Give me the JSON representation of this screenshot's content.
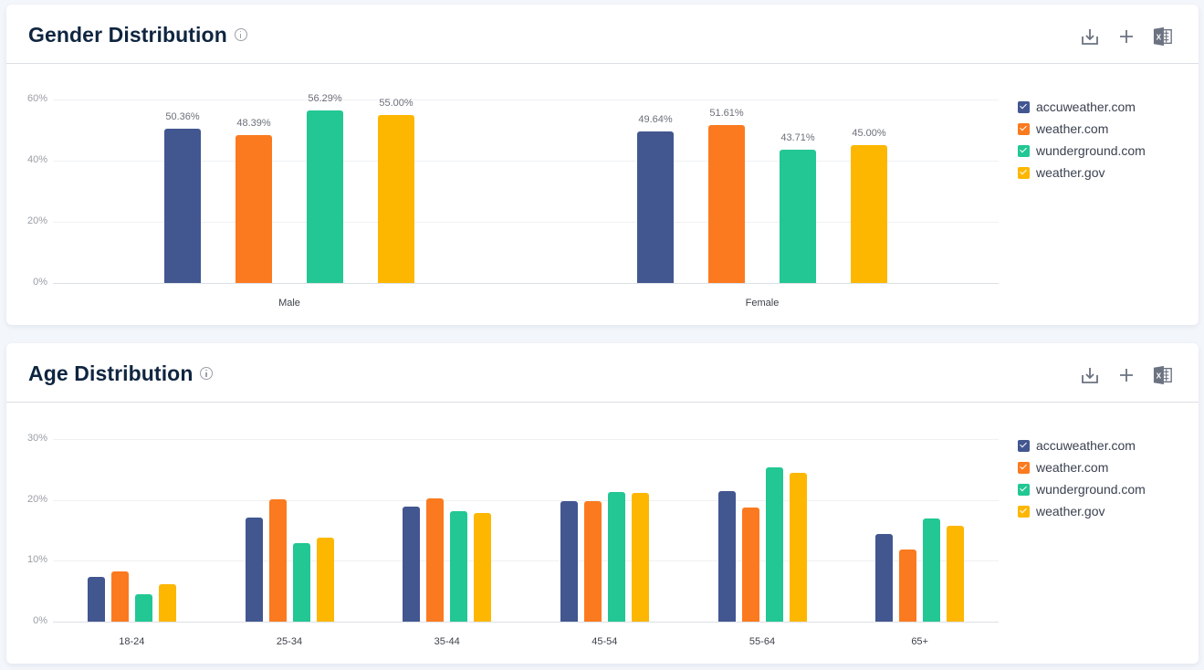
{
  "series_colors": {
    "accuweather.com": "#425690",
    "weather.com": "#fb7a1f",
    "wunderground.com": "#22c793",
    "weather.gov": "#fdb700"
  },
  "legend": [
    {
      "label": "accuweather.com",
      "color": "#425690"
    },
    {
      "label": "weather.com",
      "color": "#fb7a1f"
    },
    {
      "label": "wunderground.com",
      "color": "#22c793"
    },
    {
      "label": "weather.gov",
      "color": "#fdb700"
    }
  ],
  "gender": {
    "title": "Gender Distribution",
    "yticks": [
      "60%",
      "40%",
      "20%",
      "0%"
    ],
    "categories": [
      "Male",
      "Female"
    ],
    "labels": [
      [
        "50.36%",
        "48.39%",
        "56.29%",
        "55.00%"
      ],
      [
        "49.64%",
        "51.61%",
        "43.71%",
        "45.00%"
      ]
    ]
  },
  "age": {
    "title": "Age Distribution",
    "yticks": [
      "30%",
      "20%",
      "10%",
      "0%"
    ],
    "categories": [
      "18-24",
      "25-34",
      "35-44",
      "45-54",
      "55-64",
      "65+"
    ]
  },
  "toolbar": {
    "download": "download-icon",
    "add": "plus-icon",
    "excel": "excel-icon"
  },
  "chart_data": [
    {
      "type": "bar",
      "title": "Gender Distribution",
      "categories": [
        "Male",
        "Female"
      ],
      "series": [
        {
          "name": "accuweather.com",
          "values": [
            50.36,
            49.64
          ]
        },
        {
          "name": "weather.com",
          "values": [
            48.39,
            51.61
          ]
        },
        {
          "name": "wunderground.com",
          "values": [
            56.29,
            43.71
          ]
        },
        {
          "name": "weather.gov",
          "values": [
            55.0,
            45.0
          ]
        }
      ],
      "xlabel": "",
      "ylabel": "",
      "ylim": [
        0,
        60
      ],
      "yticks": [
        "0%",
        "20%",
        "40%",
        "60%"
      ],
      "grid": true,
      "legend_position": "right",
      "data_labels": true
    },
    {
      "type": "bar",
      "title": "Age Distribution",
      "categories": [
        "18-24",
        "25-34",
        "35-44",
        "45-54",
        "55-64",
        "65+"
      ],
      "series": [
        {
          "name": "accuweather.com",
          "values": [
            7.3,
            17.1,
            18.9,
            19.8,
            21.4,
            14.4
          ]
        },
        {
          "name": "weather.com",
          "values": [
            8.2,
            20.1,
            20.2,
            19.8,
            18.7,
            11.8
          ]
        },
        {
          "name": "wunderground.com",
          "values": [
            4.5,
            12.9,
            18.1,
            21.3,
            25.4,
            16.9
          ]
        },
        {
          "name": "weather.gov",
          "values": [
            6.1,
            13.8,
            17.8,
            21.1,
            24.4,
            15.7
          ]
        }
      ],
      "xlabel": "",
      "ylabel": "",
      "ylim": [
        0,
        30
      ],
      "yticks": [
        "0%",
        "10%",
        "20%",
        "30%"
      ],
      "grid": true,
      "legend_position": "right",
      "data_labels": false
    }
  ]
}
